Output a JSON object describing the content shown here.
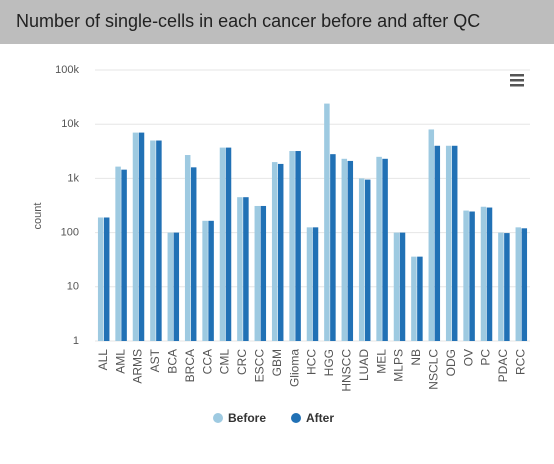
{
  "chart_data": {
    "type": "bar",
    "title": "Number of single-cells in each cancer before and after QC",
    "y_label": "count",
    "log_scale": true,
    "grid": true,
    "legend": "bottom",
    "categories": [
      "ALL",
      "AML",
      "ARMS",
      "AST",
      "BCA",
      "BRCA",
      "CCA",
      "CML",
      "CRC",
      "ESCC",
      "GBM",
      "Glioma",
      "HCC",
      "HGG",
      "HNSCC",
      "LUAD",
      "MEL",
      "MLPS",
      "NB",
      "NSCLC",
      "ODG",
      "OV",
      "PC",
      "PDAC",
      "RCC"
    ],
    "series": [
      {
        "name": "Before",
        "color": "#9ecae1",
        "values": [
          190,
          1650,
          7000,
          5000,
          100,
          2700,
          165,
          3700,
          450,
          310,
          2000,
          3200,
          125,
          24000,
          2300,
          1000,
          2500,
          100,
          36,
          8000,
          4000,
          255,
          300,
          100,
          125
        ]
      },
      {
        "name": "After",
        "color": "#2171b5",
        "values": [
          190,
          1450,
          7000,
          5000,
          100,
          1600,
          165,
          3700,
          450,
          310,
          1850,
          3200,
          125,
          2800,
          2100,
          950,
          2300,
          100,
          36,
          4000,
          4000,
          245,
          290,
          98,
          120
        ]
      }
    ],
    "ylim": [
      1,
      100000
    ],
    "yticks": [
      1,
      10,
      100,
      {
        "value": 1000,
        "label": "1k"
      },
      {
        "value": 10000,
        "label": "10k"
      },
      {
        "value": 100000,
        "label": "100k"
      }
    ]
  }
}
